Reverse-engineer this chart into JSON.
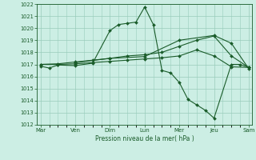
{
  "background_color": "#cceee4",
  "grid_color": "#99ccbb",
  "line_color": "#1a5c2a",
  "x_labels": [
    "Mar",
    "Ven",
    "Dim",
    "Lun",
    "Mer",
    "Jeu",
    "Sam"
  ],
  "x_tick_positions": [
    0,
    1,
    2,
    3,
    4,
    5,
    6
  ],
  "ylim": [
    1012,
    1022
  ],
  "yticks": [
    1012,
    1013,
    1014,
    1015,
    1016,
    1017,
    1018,
    1019,
    1020,
    1021,
    1022
  ],
  "xlabel": "Pression niveau de la mer( hPa )",
  "line1": {
    "x": [
      0.0,
      0.25,
      0.5,
      1.0,
      1.5,
      2.0,
      2.25,
      2.5,
      2.75,
      3.0,
      3.25,
      3.5,
      3.75,
      4.0,
      4.25,
      4.5,
      4.75,
      5.0,
      5.5,
      5.75,
      6.0
    ],
    "y": [
      1016.85,
      1016.7,
      1016.95,
      1016.9,
      1017.1,
      1019.8,
      1020.3,
      1020.4,
      1020.5,
      1021.75,
      1020.3,
      1016.5,
      1016.3,
      1015.5,
      1014.1,
      1013.65,
      1013.2,
      1012.55,
      1017.0,
      1017.0,
      1016.75
    ]
  },
  "line2": {
    "x": [
      0.0,
      0.5,
      1.0,
      1.5,
      2.0,
      2.5,
      3.0,
      3.5,
      4.0,
      4.5,
      5.0,
      5.5,
      6.0
    ],
    "y": [
      1017.0,
      1017.0,
      1017.05,
      1017.15,
      1017.25,
      1017.35,
      1017.45,
      1017.55,
      1017.7,
      1018.2,
      1017.7,
      1016.8,
      1016.75
    ]
  },
  "line3": {
    "x": [
      0.0,
      0.5,
      1.0,
      1.5,
      2.0,
      2.5,
      3.0,
      3.5,
      4.0,
      4.5,
      5.0,
      5.5,
      6.0
    ],
    "y": [
      1017.0,
      1017.05,
      1017.2,
      1017.35,
      1017.5,
      1017.7,
      1017.8,
      1018.0,
      1018.5,
      1019.0,
      1019.35,
      1017.7,
      1016.75
    ]
  },
  "line4": {
    "x": [
      1.0,
      2.0,
      3.0,
      4.0,
      5.0,
      5.5,
      6.0
    ],
    "y": [
      1017.15,
      1017.5,
      1017.65,
      1019.0,
      1019.4,
      1018.75,
      1016.65
    ]
  }
}
